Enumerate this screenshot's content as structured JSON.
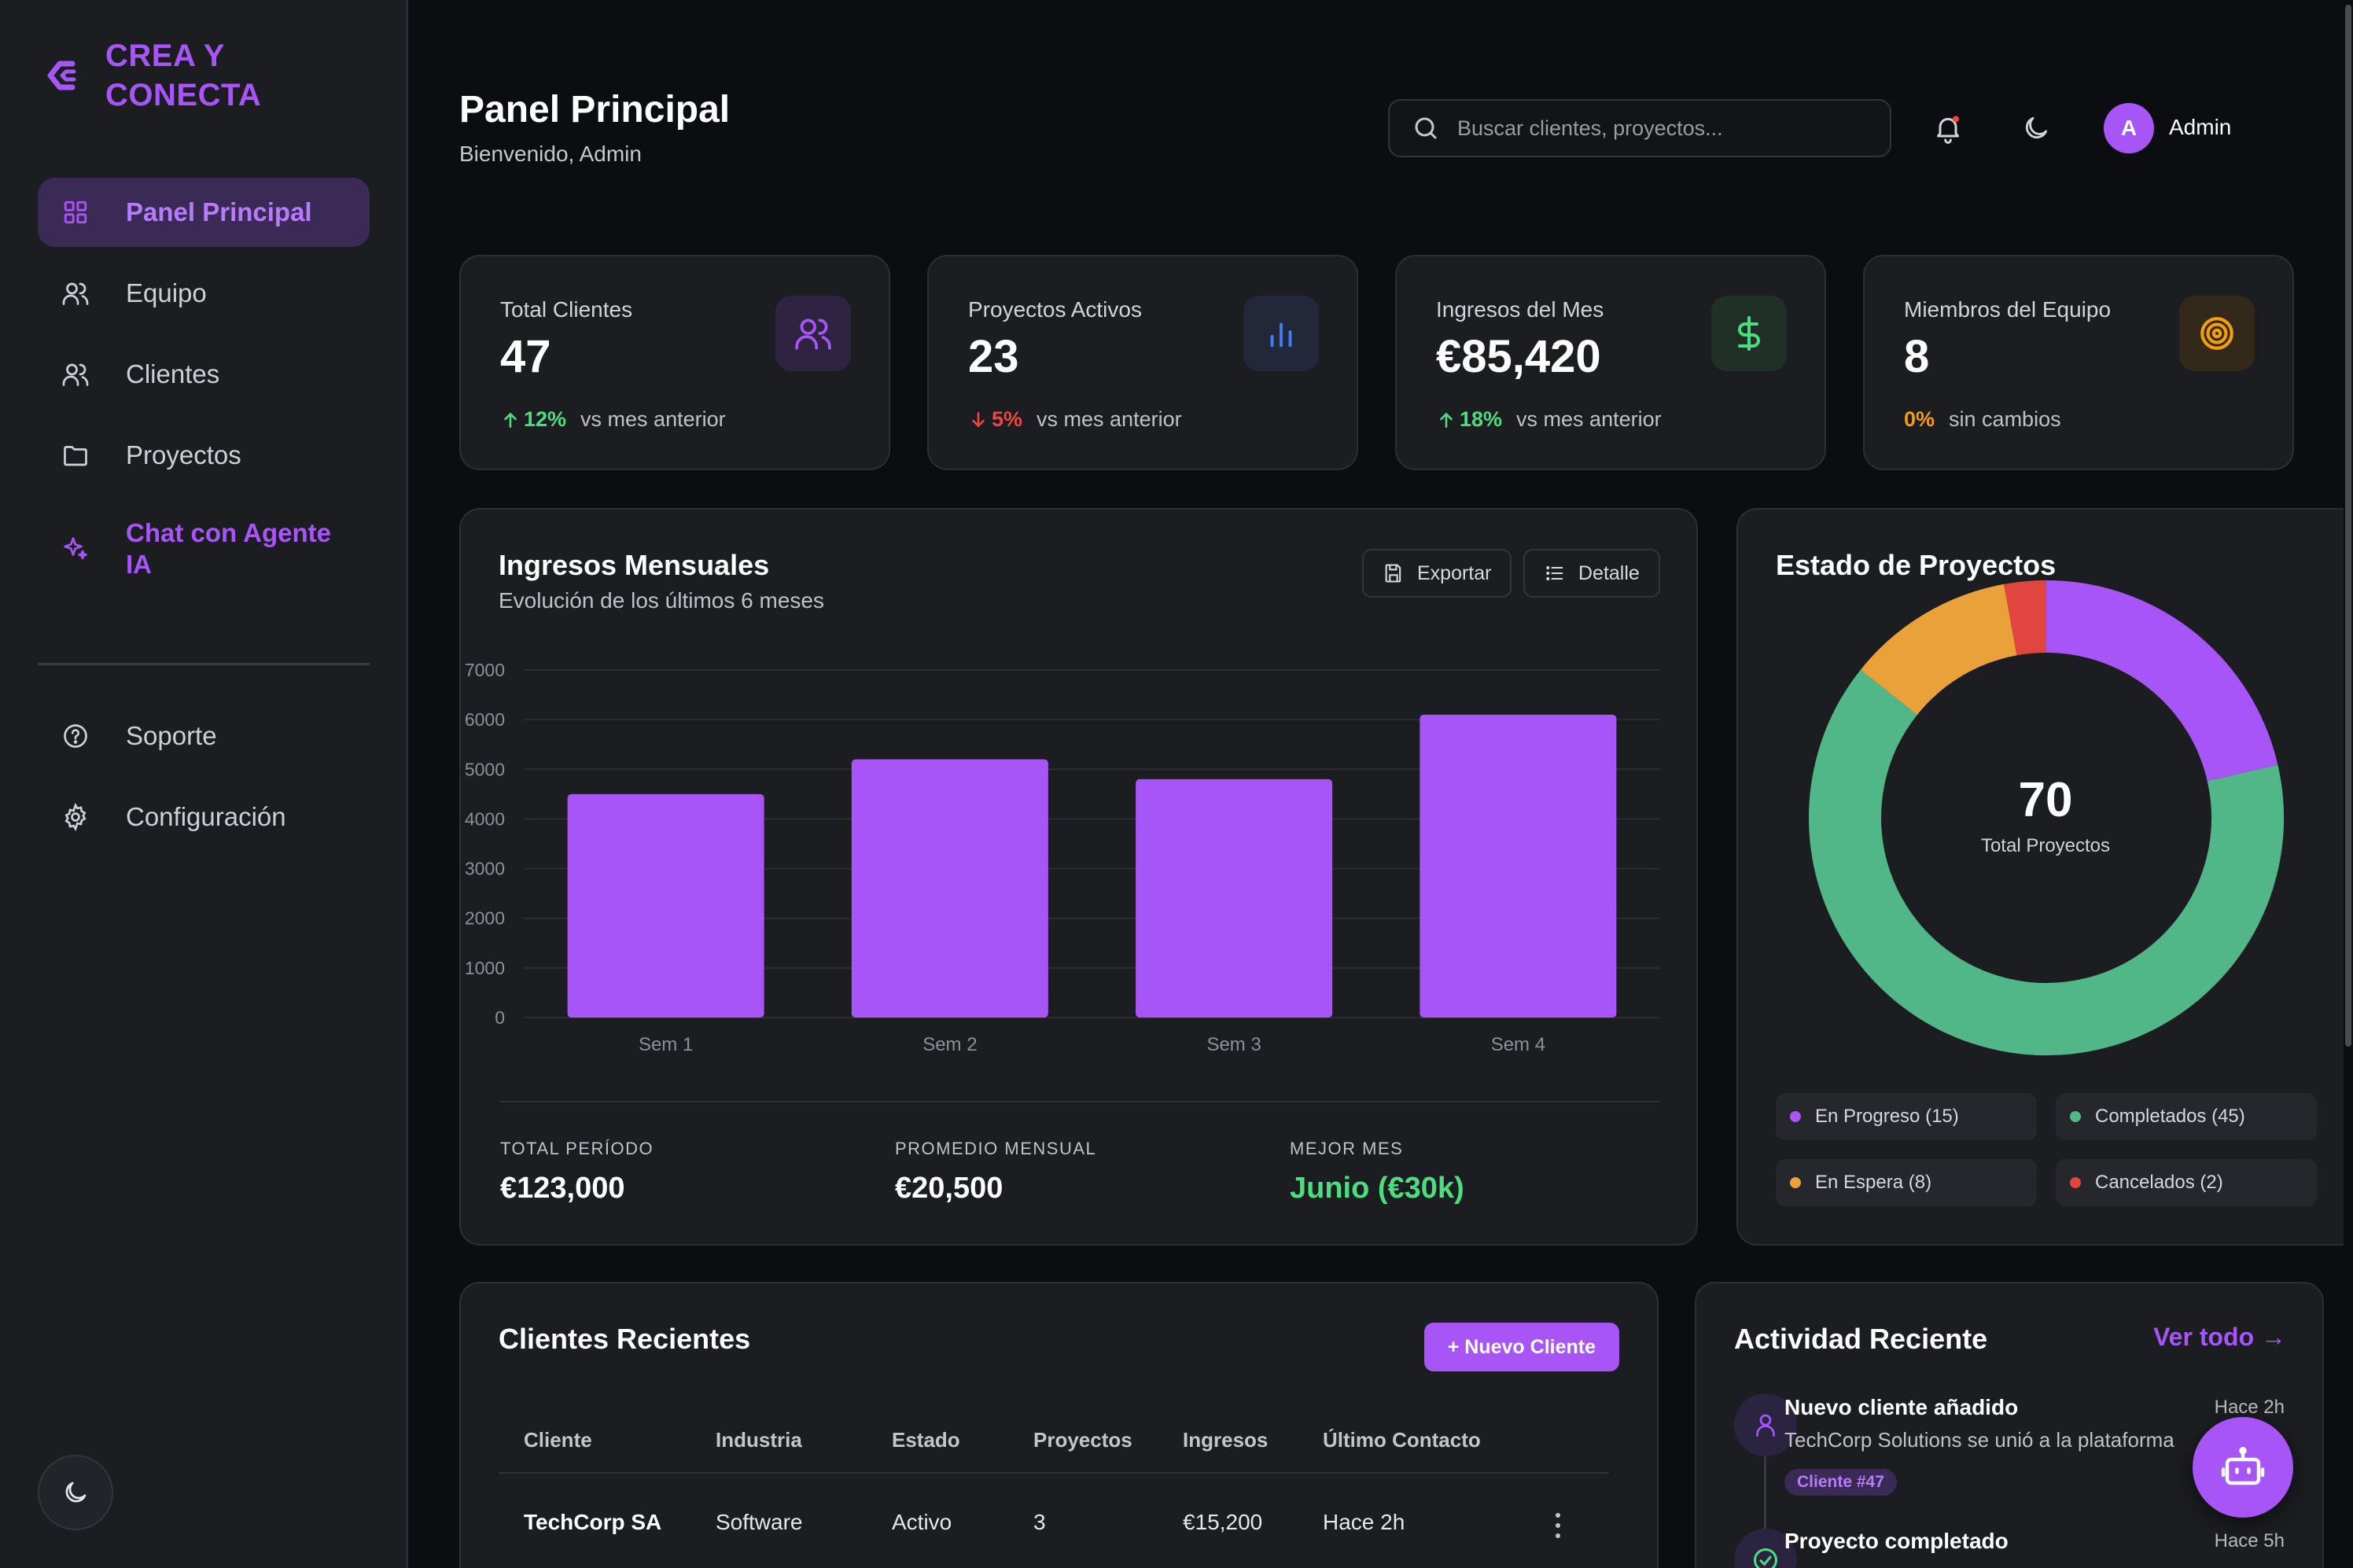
{
  "brand": {
    "line1": "CREA Y",
    "line2": "CONECTA",
    "color": "#a855f7"
  },
  "sidebar": {
    "items": [
      {
        "label": "Panel Principal",
        "icon": "grid-icon",
        "active": true
      },
      {
        "label": "Equipo",
        "icon": "users-icon"
      },
      {
        "label": "Clientes",
        "icon": "users-icon"
      },
      {
        "label": "Proyectos",
        "icon": "folder-icon"
      },
      {
        "label": "Chat con Agente IA",
        "icon": "sparkles-icon"
      }
    ],
    "secondary": [
      {
        "label": "Soporte",
        "icon": "help-circle-icon"
      },
      {
        "label": "Configuración",
        "icon": "gear-icon"
      }
    ],
    "theme_toggle_icon": "moon-icon"
  },
  "header": {
    "title": "Panel Principal",
    "subtitle": "Bienvenido, Admin",
    "search_placeholder": "Buscar clientes, proyectos...",
    "user_initial": "A",
    "user_name": "Admin"
  },
  "stats": [
    {
      "label": "Total Clientes",
      "value": "47",
      "change": "12%",
      "direction": "up",
      "note": "vs mes anterior",
      "icon": "users-icon",
      "color": "#a855f7"
    },
    {
      "label": "Proyectos Activos",
      "value": "23",
      "change": "5%",
      "direction": "down",
      "note": "vs mes anterior",
      "icon": "bar-chart-icon",
      "color": "#3b82f6"
    },
    {
      "label": "Ingresos del Mes",
      "value": "€85,420",
      "change": "18%",
      "direction": "up",
      "note": "vs mes anterior",
      "icon": "dollar-icon",
      "color": "#4ade80"
    },
    {
      "label": "Miembros del Equipo",
      "value": "8",
      "change": "0%",
      "direction": "flat",
      "note": "sin cambios",
      "icon": "target-icon",
      "color": "#f59e0b"
    }
  ],
  "revenue": {
    "title": "Ingresos Mensuales",
    "subtitle": "Evolución de los últimos 6 meses",
    "export_label": "Exportar",
    "detail_label": "Detalle",
    "summary": [
      {
        "label": "TOTAL PERÍODO",
        "value": "€123,000"
      },
      {
        "label": "PROMEDIO MENSUAL",
        "value": "€20,500"
      },
      {
        "label": "MEJOR MES",
        "value": "Junio (€30k)"
      }
    ]
  },
  "chart_data": [
    {
      "type": "bar",
      "categories": [
        "Sem 1",
        "Sem 2",
        "Sem 3",
        "Sem 4"
      ],
      "values": [
        4500,
        5200,
        4800,
        6100
      ],
      "ylim": [
        0,
        7000
      ],
      "yticks": [
        0,
        1000,
        2000,
        3000,
        4000,
        5000,
        6000,
        7000
      ],
      "color": "#a855f7",
      "grid": true
    },
    {
      "type": "pie",
      "title": "Estado de Proyectos",
      "center_value": "70",
      "center_label": "Total Proyectos",
      "slices": [
        {
          "name": "En Progreso",
          "value": 15,
          "legend": "En Progreso (15)",
          "color": "#a855f7"
        },
        {
          "name": "Completados",
          "value": 45,
          "legend": "Completados (45)",
          "color": "#52b788"
        },
        {
          "name": "En Espera",
          "value": 8,
          "legend": "En Espera (8)",
          "color": "#eba13a"
        },
        {
          "name": "Cancelados",
          "value": 2,
          "legend": "Cancelados (2)",
          "color": "#e0463f"
        }
      ]
    }
  ],
  "clients": {
    "title": "Clientes Recientes",
    "new_button": "+ Nuevo Cliente",
    "columns": [
      "Cliente",
      "Industria",
      "Estado",
      "Proyectos",
      "Ingresos",
      "Último Contacto"
    ],
    "rows": [
      [
        "TechCorp SA",
        "Software",
        "Activo",
        "3",
        "€15,200",
        "Hace 2h"
      ]
    ]
  },
  "activity": {
    "title": "Actividad Reciente",
    "view_all": "Ver todo →",
    "items": [
      {
        "title": "Nuevo cliente añadido",
        "time": "Hace 2h",
        "desc": "TechCorp Solutions se unió a la plataforma",
        "badge": "Cliente #47",
        "icon": "user-icon"
      },
      {
        "title": "Proyecto completado",
        "time": "Hace 5h",
        "desc": "",
        "icon": "check-circle-icon"
      }
    ]
  },
  "fab_icon": "bot-icon"
}
